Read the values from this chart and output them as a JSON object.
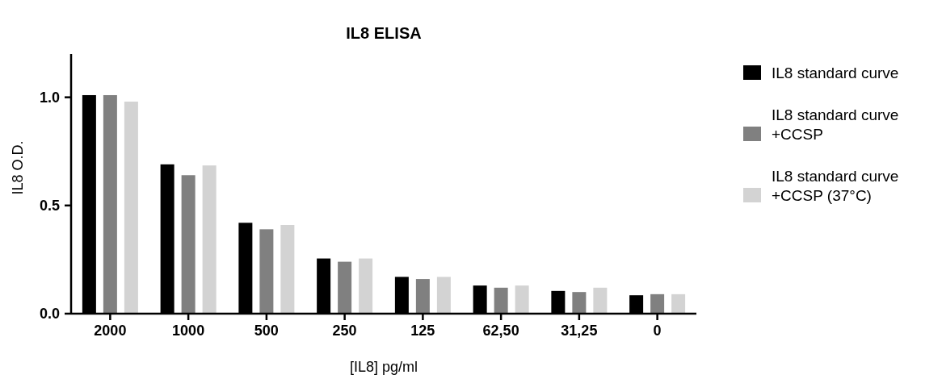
{
  "chart_data": {
    "type": "bar",
    "title": "IL8 ELISA",
    "xlabel": "[IL8] pg/ml",
    "ylabel": "IL8 O.D.",
    "categories": [
      "2000",
      "1000",
      "500",
      "250",
      "125",
      "62,50",
      "31,25",
      "0"
    ],
    "series": [
      {
        "name": "IL8 standard curve",
        "color": "#000000",
        "values": [
          1.01,
          0.69,
          0.42,
          0.255,
          0.17,
          0.13,
          0.105,
          0.085
        ]
      },
      {
        "name": "IL8 standard curve +CCSP",
        "color": "#808080",
        "values": [
          1.01,
          0.64,
          0.39,
          0.24,
          0.16,
          0.12,
          0.1,
          0.09
        ]
      },
      {
        "name": "IL8 standard curve +CCSP (37°C)",
        "color": "#d3d3d3",
        "values": [
          0.98,
          0.685,
          0.41,
          0.255,
          0.17,
          0.13,
          0.12,
          0.09
        ]
      }
    ],
    "ylim": [
      0,
      1.2
    ],
    "yticks": [
      {
        "value": 0,
        "label": "0.0"
      },
      {
        "value": 0.5,
        "label": "0.5"
      },
      {
        "value": 1,
        "label": "1.0"
      }
    ],
    "grid": false,
    "legend": "right"
  }
}
